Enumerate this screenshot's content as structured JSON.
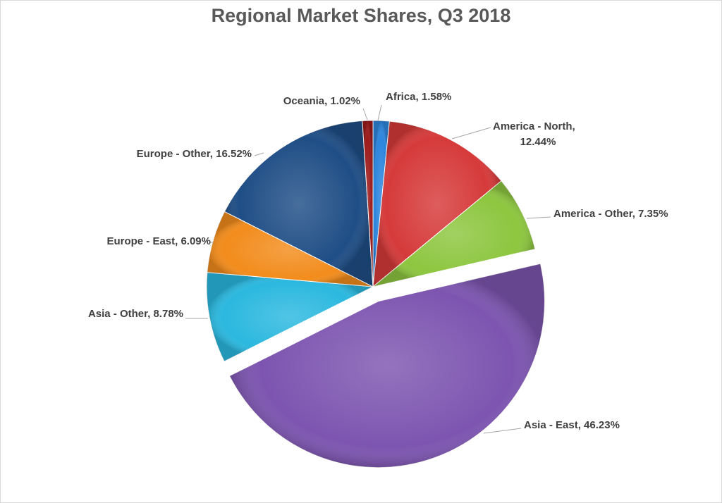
{
  "chart_data": {
    "type": "pie",
    "title": "Regional Market Shares, Q3 2018",
    "slices": [
      {
        "label": "Africa",
        "value": 1.58,
        "display": "Africa, 1.58%",
        "color": "#2e86de"
      },
      {
        "label": "America - North",
        "value": 12.44,
        "display_lines": [
          "America - North,",
          "12.44%"
        ],
        "color": "#d63a3a"
      },
      {
        "label": "America - Other",
        "value": 7.35,
        "display": "America - Other, 7.35%",
        "color": "#8dc63f"
      },
      {
        "label": "Asia - East",
        "value": 46.23,
        "display": "Asia - East, 46.23%",
        "color": "#7d55b0",
        "exploded": true
      },
      {
        "label": "Asia - Other",
        "value": 8.78,
        "display": "Asia - Other, 8.78%",
        "color": "#2bb8df"
      },
      {
        "label": "Europe - East",
        "value": 6.09,
        "display": "Europe - East, 6.09%",
        "color": "#f28c1c"
      },
      {
        "label": "Europe - Other",
        "value": 16.52,
        "display": "Europe - Other, 16.52%",
        "color": "#1f4e86"
      },
      {
        "label": "Oceania",
        "value": 1.02,
        "display": "Oceania, 1.02%",
        "color": "#9e1b1b"
      }
    ],
    "start_angle_deg": 0,
    "direction": "clockwise",
    "legend": "none",
    "data_labels": "outside-with-leader-lines"
  }
}
